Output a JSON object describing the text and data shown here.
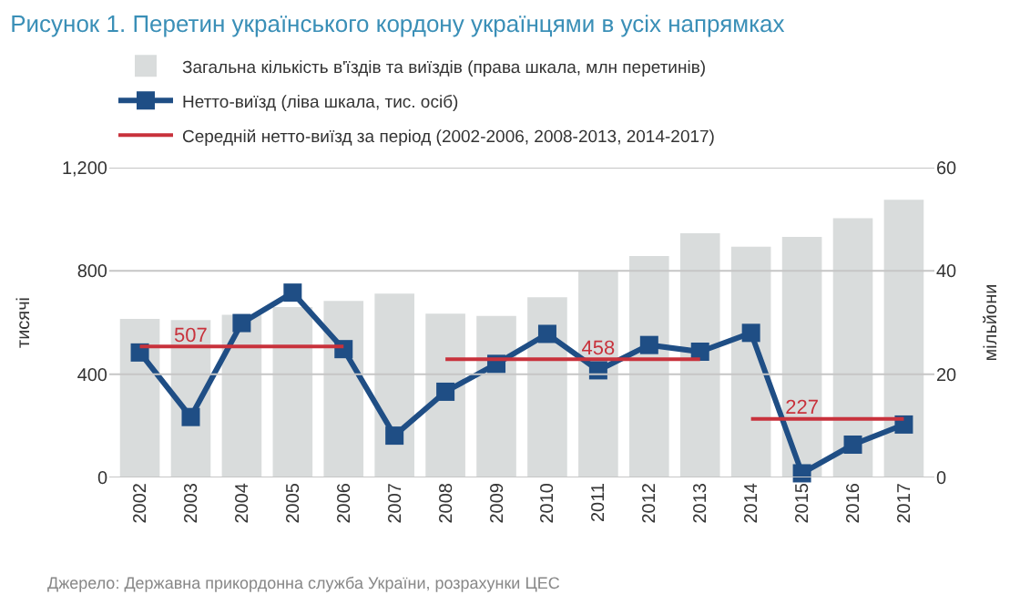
{
  "chart_data": {
    "type": "bar",
    "title": "Рисунок 1. Перетин українського кордону українцями в усіх напрямках",
    "categories": [
      "2002",
      "2003",
      "2004",
      "2005",
      "2006",
      "2007",
      "2008",
      "2009",
      "2010",
      "2011",
      "2012",
      "2013",
      "2014",
      "2015",
      "2016",
      "2017"
    ],
    "series": [
      {
        "axis": "y2",
        "name": "Загальна кількість в'їздів та виїздів (права шкала, млн перетинів)",
        "color": "#d9dcdc",
        "values": [
          30.7,
          30.5,
          31.5,
          33,
          34.2,
          35.6,
          31.7,
          31.3,
          34.9,
          40.1,
          42.9,
          47.3,
          44.7,
          46.6,
          50.2,
          53.8
        ]
      },
      {
        "type": "line",
        "marker": "square",
        "name": "Нетто-виїзд (ліва шкала, тис. осіб)",
        "color": "#1f4e85",
        "values": [
          484,
          234,
          598,
          716,
          497,
          162,
          332,
          440,
          556,
          415,
          513,
          487,
          560,
          16,
          127,
          205
        ]
      },
      {
        "type": "line",
        "marker": "none",
        "name": "Середній нетто-виїзд за період (2002-2006, 2008-2013, 2014-2017)",
        "color": "#c8323c",
        "values": [
          507,
          507,
          507,
          507,
          507,
          null,
          null,
          null,
          null,
          null,
          null,
          null,
          null,
          null,
          null,
          null
        ],
        "value_labels": [
          null,
          "507",
          null,
          null,
          null,
          null,
          null,
          null,
          null,
          null,
          null,
          null,
          null,
          null,
          null,
          null
        ]
      },
      {
        "type": "line",
        "marker": "none",
        "color": "#c8323c",
        "values": [
          null,
          null,
          null,
          null,
          null,
          null,
          458,
          458,
          458,
          458,
          458,
          458,
          null,
          null,
          null,
          null
        ],
        "value_labels": [
          null,
          null,
          null,
          null,
          null,
          null,
          null,
          null,
          null,
          "458",
          null,
          null,
          null,
          null,
          null,
          null
        ]
      },
      {
        "type": "line",
        "marker": "none",
        "color": "#c8323c",
        "values": [
          null,
          null,
          null,
          null,
          null,
          null,
          null,
          null,
          null,
          null,
          null,
          null,
          227,
          227,
          227,
          227
        ],
        "value_labels": [
          null,
          null,
          null,
          null,
          null,
          null,
          null,
          null,
          null,
          null,
          null,
          null,
          null,
          "227",
          null,
          null
        ]
      }
    ],
    "ylabel": "тисячі",
    "y2label": "мільйони",
    "ylim": [
      0,
      1200
    ],
    "yticks": [
      0,
      {
        "value": 400,
        "label": "400"
      },
      800,
      {
        "value": 1200,
        "label": "1,200"
      }
    ],
    "y2lim": [
      0,
      60
    ],
    "y2ticks": [
      0,
      20,
      40,
      60
    ],
    "grid": "y",
    "legend": "top left",
    "annotations": [
      "Джерело: Державна прикордонна служба України, розрахунки ЦЕС"
    ]
  }
}
